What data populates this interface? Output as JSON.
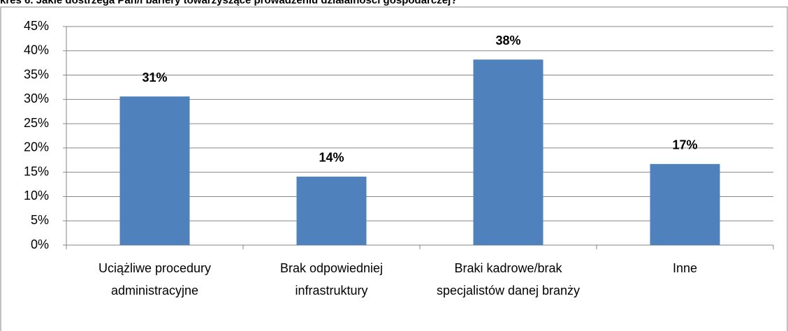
{
  "chart_data": {
    "type": "bar",
    "title": "kres 6. Jakie dostrzega Pan/i bariery towarzyszące prowadzeniu działalności gospodarczej?",
    "categories": [
      "Uciążliwe procedury administracyjne",
      "Brak odpowiedniej infrastruktury",
      "Braki kadrowe/brak specjalistów danej branży",
      "Inne"
    ],
    "values": [
      30.6,
      14.1,
      38.2,
      16.7
    ],
    "value_labels": [
      "31%",
      "14%",
      "38%",
      "17%"
    ],
    "color": "#4f81bd",
    "ylim": [
      0,
      45
    ],
    "yticks": [
      {
        "value": 0,
        "label": "0%"
      },
      {
        "value": 5,
        "label": "5%"
      },
      {
        "value": 10,
        "label": "10%"
      },
      {
        "value": 15,
        "label": "15%"
      },
      {
        "value": 20,
        "label": "20%"
      },
      {
        "value": 25,
        "label": "25%"
      },
      {
        "value": 30,
        "label": "30%"
      },
      {
        "value": 35,
        "label": "35%"
      },
      {
        "value": 40,
        "label": "40%"
      },
      {
        "value": 45,
        "label": "45%"
      }
    ],
    "grid": true
  }
}
